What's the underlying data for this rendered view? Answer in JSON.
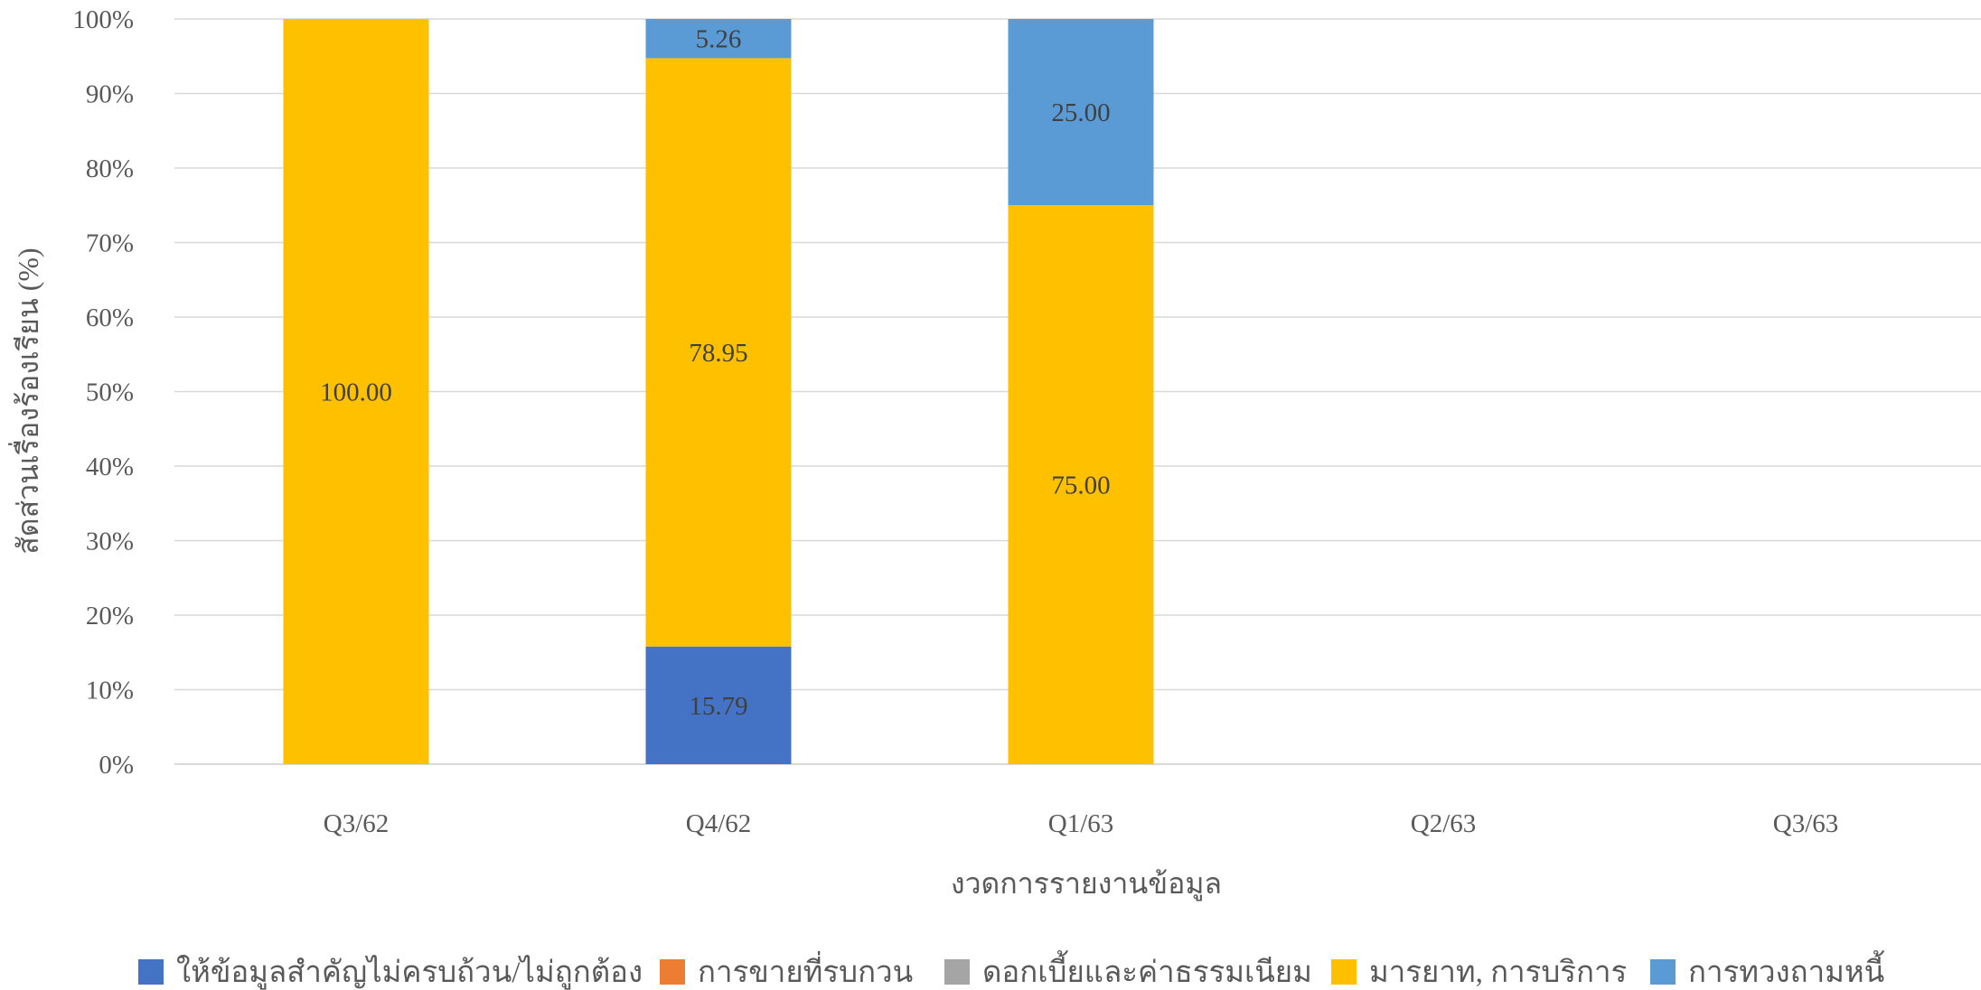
{
  "chart_data": {
    "type": "bar",
    "stacked": true,
    "percent_stacked": true,
    "categories": [
      "Q3/62",
      "Q4/62",
      "Q1/63",
      "Q2/63",
      "Q3/63"
    ],
    "series": [
      {
        "name": "ให้ข้อมูลสำคัญไม่ครบถ้วน/ไม่ถูกต้อง",
        "color": "#4472C4",
        "values": [
          0,
          15.79,
          0,
          null,
          null
        ]
      },
      {
        "name": "การขายที่รบกวน",
        "color": "#ED7D31",
        "values": [
          0,
          0,
          0,
          null,
          null
        ]
      },
      {
        "name": "ดอกเบี้ยและค่าธรรมเนียม",
        "color": "#A5A5A5",
        "values": [
          0,
          0,
          0,
          null,
          null
        ]
      },
      {
        "name": "มารยาท, การบริการ",
        "color": "#FFC000",
        "values": [
          100.0,
          78.95,
          75.0,
          null,
          null
        ]
      },
      {
        "name": "การทวงถามหนี้",
        "color": "#5B9BD5",
        "values": [
          0,
          5.26,
          25.0,
          null,
          null
        ]
      }
    ],
    "data_labels": true,
    "xlabel": "งวดการรายงานข้อมูล",
    "ylabel": "สัดส่วนเรื่องร้องเรียน (%)",
    "ylim": [
      0,
      100
    ],
    "y_ticks": [
      "0%",
      "10%",
      "20%",
      "30%",
      "40%",
      "50%",
      "60%",
      "70%",
      "80%",
      "90%",
      "100%"
    ],
    "grid": true,
    "legend": "bottom"
  }
}
